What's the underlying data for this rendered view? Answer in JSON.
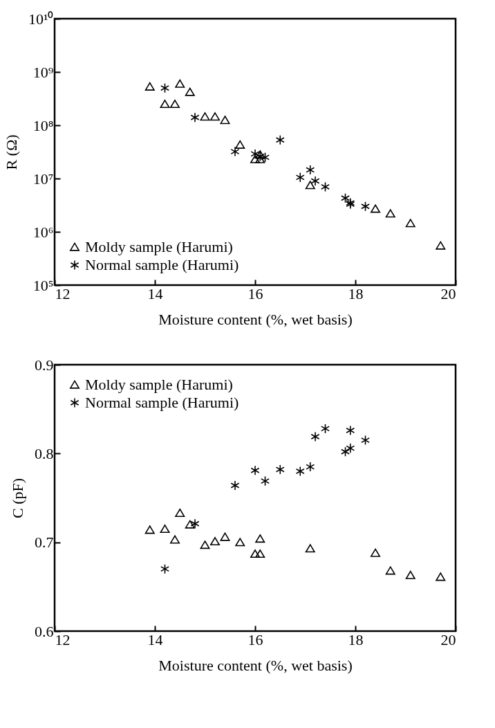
{
  "chart_data": [
    {
      "type": "scatter",
      "xlabel": "Moisture content (%, wet basis)",
      "ylabel": "R (Ω)",
      "log": "y",
      "grid": false,
      "legend": "bottom left",
      "xlim": [
        12,
        20
      ],
      "xticks": [
        12,
        14,
        16,
        18,
        20
      ],
      "ylim": [
        100000,
        10000000000
      ],
      "yticks": [
        {
          "value": 100000,
          "label": "10⁵"
        },
        {
          "value": 1000000,
          "label": "10⁶"
        },
        {
          "value": 10000000,
          "label": "10⁷"
        },
        {
          "value": 100000000,
          "label": "10⁸"
        },
        {
          "value": 1000000000,
          "label": "10⁹"
        },
        {
          "value": 10000000000,
          "label": "10¹⁰"
        }
      ],
      "series": [
        {
          "name": "Moldy sample (Harumi)",
          "color": "#000000",
          "marker": "triangle",
          "x": [
            13.9,
            14.2,
            14.4,
            14.5,
            14.7,
            15.0,
            15.2,
            15.4,
            15.7,
            16.0,
            16.1,
            16.1,
            17.1,
            18.4,
            18.7,
            19.1,
            19.7
          ],
          "values": [
            530000000,
            250000000,
            250000000,
            600000000,
            420000000,
            145000000,
            145000000,
            125000000,
            43000000,
            23000000,
            23000000,
            28000000,
            7500000,
            2700000,
            2200000,
            1450000,
            550000
          ]
        },
        {
          "name": "Normal sample (Harumi)",
          "color": "#000000",
          "marker": "cross",
          "x": [
            14.2,
            14.8,
            15.6,
            16.0,
            16.1,
            16.2,
            16.5,
            16.9,
            17.1,
            17.2,
            17.4,
            17.8,
            17.9,
            17.9,
            18.2
          ],
          "values": [
            500000000,
            140000000,
            32000000,
            29000000,
            26000000,
            25000000,
            53000000,
            10500000,
            14500000,
            9000000,
            7000000,
            4300000,
            3500000,
            3300000,
            3000000
          ]
        }
      ]
    },
    {
      "type": "scatter",
      "xlabel": "Moisture content (%, wet basis)",
      "ylabel": "C (pF)",
      "grid": false,
      "legend": "top left",
      "xlim": [
        12,
        20
      ],
      "xticks": [
        12,
        14,
        16,
        18,
        20
      ],
      "ylim": [
        0.6,
        0.9
      ],
      "yticks": [
        0.6,
        0.7,
        0.8,
        0.9
      ],
      "series": [
        {
          "name": "Moldy sample (Harumi)",
          "color": "#000000",
          "marker": "triangle",
          "x": [
            13.9,
            14.2,
            14.4,
            14.5,
            14.7,
            15.0,
            15.2,
            15.4,
            15.7,
            16.0,
            16.1,
            16.1,
            17.1,
            18.4,
            18.7,
            19.1,
            19.7
          ],
          "values": [
            0.714,
            0.715,
            0.703,
            0.733,
            0.72,
            0.697,
            0.701,
            0.706,
            0.7,
            0.687,
            0.704,
            0.687,
            0.693,
            0.688,
            0.668,
            0.663,
            0.661
          ]
        },
        {
          "name": "Normal sample (Harumi)",
          "color": "#000000",
          "marker": "cross",
          "x": [
            14.2,
            14.8,
            15.6,
            16.0,
            16.2,
            16.5,
            16.9,
            17.1,
            17.2,
            17.4,
            17.8,
            17.9,
            17.9,
            18.2
          ],
          "values": [
            0.67,
            0.721,
            0.764,
            0.781,
            0.769,
            0.782,
            0.78,
            0.785,
            0.819,
            0.828,
            0.802,
            0.806,
            0.826,
            0.815
          ]
        }
      ]
    }
  ]
}
